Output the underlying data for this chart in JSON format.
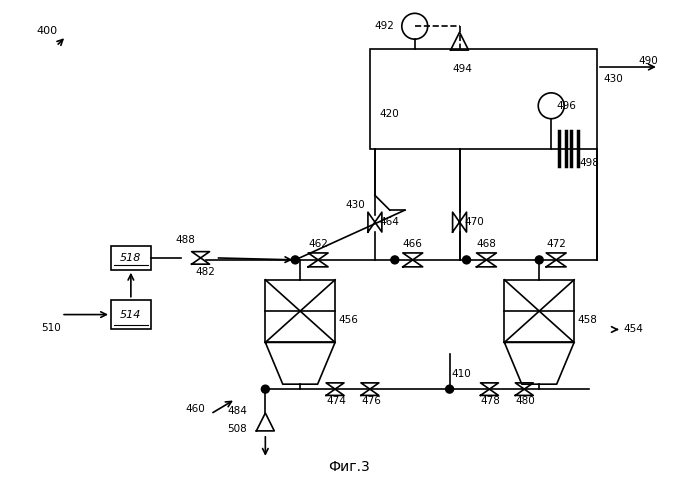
{
  "title": "Фиг.3",
  "bg_color": "#ffffff",
  "line_color": "#000000",
  "fig_w": 6.99,
  "fig_h": 4.82,
  "xlim": [
    0,
    699
  ],
  "ylim": [
    0,
    482
  ]
}
